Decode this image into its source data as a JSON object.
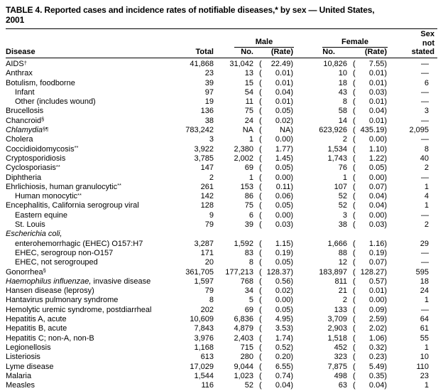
{
  "title_line1": "TABLE 4. Reported cases and incidence rates of notifiable diseases,* by sex — United States,",
  "title_line2": "2001",
  "header": {
    "disease": "Disease",
    "total": "Total",
    "male": "Male",
    "female": "Female",
    "no": "No.",
    "rate": "(Rate)",
    "sex": "Sex",
    "not": "not",
    "stated": "stated"
  },
  "rows": [
    {
      "name": "AIDS",
      "sup": "†",
      "total": "41,868",
      "mno": "31,042",
      "mrate": "22.49",
      "fno": "10,826",
      "frate": "7.55",
      "sns": "—"
    },
    {
      "name": "Anthrax",
      "total": "23",
      "mno": "13",
      "mrate": "0.01",
      "fno": "10",
      "frate": "0.01",
      "sns": "—"
    },
    {
      "name": "Botulism, foodborne",
      "total": "39",
      "mno": "15",
      "mrate": "0.01",
      "fno": "18",
      "frate": "0.01",
      "sns": "6"
    },
    {
      "name": "Infant",
      "indent": 1,
      "total": "97",
      "mno": "54",
      "mrate": "0.04",
      "fno": "43",
      "frate": "0.03",
      "sns": "—"
    },
    {
      "name": "Other (includes wound)",
      "indent": 1,
      "total": "19",
      "mno": "11",
      "mrate": "0.01",
      "fno": "8",
      "frate": "0.01",
      "sns": "—"
    },
    {
      "name": "Brucellosis",
      "total": "136",
      "mno": "75",
      "mrate": "0.05",
      "fno": "58",
      "frate": "0.04",
      "sns": "3"
    },
    {
      "name": "Chancroid",
      "sup": "§",
      "total": "38",
      "mno": "24",
      "mrate": "0.02",
      "fno": "14",
      "frate": "0.01",
      "sns": "—"
    },
    {
      "name": "Chlamydia",
      "italic": true,
      "sup": "§¶",
      "total": "783,242",
      "mno": "NA",
      "mrate": "NA",
      "fno": "623,926",
      "frate": "435.19",
      "sns": "2,095"
    },
    {
      "name": "Cholera",
      "total": "3",
      "mno": "1",
      "mrate": "0.00",
      "fno": "2",
      "frate": "0.00",
      "sns": "—"
    },
    {
      "name": "Coccidioidomycosis",
      "sup": "**",
      "total": "3,922",
      "mno": "2,380",
      "mrate": "1.77",
      "fno": "1,534",
      "frate": "1.10",
      "sns": "8"
    },
    {
      "name": "Cryptosporidiosis",
      "total": "3,785",
      "mno": "2,002",
      "mrate": "1.45",
      "fno": "1,743",
      "frate": "1.22",
      "sns": "40"
    },
    {
      "name": "Cyclosporiasis",
      "sup": "**",
      "total": "147",
      "mno": "69",
      "mrate": "0.05",
      "fno": "76",
      "frate": "0.05",
      "sns": "2"
    },
    {
      "name": "Diphtheria",
      "total": "2",
      "mno": "1",
      "mrate": "0.00",
      "fno": "1",
      "frate": "0.00",
      "sns": "—"
    },
    {
      "name": "Ehrlichiosis, human granulocytic",
      "sup": "**",
      "total": "261",
      "mno": "153",
      "mrate": "0.11",
      "fno": "107",
      "frate": "0.07",
      "sns": "1"
    },
    {
      "name": "Human monocytic",
      "sup": "**",
      "indent": 1,
      "total": "142",
      "mno": "86",
      "mrate": "0.06",
      "fno": "52",
      "frate": "0.04",
      "sns": "4"
    },
    {
      "name": "Encephalitis, California serogroup viral",
      "total": "128",
      "mno": "75",
      "mrate": "0.05",
      "fno": "52",
      "frate": "0.04",
      "sns": "1"
    },
    {
      "name": "Eastern equine",
      "indent": 1,
      "total": "9",
      "mno": "6",
      "mrate": "0.00",
      "fno": "3",
      "frate": "0.00",
      "sns": "—"
    },
    {
      "name": "St. Louis",
      "indent": 1,
      "total": "79",
      "mno": "39",
      "mrate": "0.03",
      "fno": "38",
      "frate": "0.03",
      "sns": "2"
    },
    {
      "name": "Escherichia coli,",
      "italic": true
    },
    {
      "name": "enterohemorrhagic (EHEC) O157:H7",
      "indent": 1,
      "total": "3,287",
      "mno": "1,592",
      "mrate": "1.15",
      "fno": "1,666",
      "frate": "1.16",
      "sns": "29"
    },
    {
      "name": "EHEC, serogroup non-O157",
      "indent": 1,
      "total": "171",
      "mno": "83",
      "mrate": "0.19",
      "fno": "88",
      "frate": "0.19",
      "sns": "—"
    },
    {
      "name": "EHEC, not serogrouped",
      "indent": 1,
      "total": "20",
      "mno": "8",
      "mrate": "0.05",
      "fno": "12",
      "frate": "0.07",
      "sns": "—"
    },
    {
      "name": "Gonorrhea",
      "sup": "§",
      "total": "361,705",
      "mno": "177,213",
      "mrate": "128.37",
      "fno": "183,897",
      "frate": "128.27",
      "sns": "595"
    },
    {
      "name": "Haemophilus influenzae,",
      "italic": true,
      "rest": " invasive disease",
      "total": "1,597",
      "mno": "768",
      "mrate": "0.56",
      "fno": "811",
      "frate": "0.57",
      "sns": "18"
    },
    {
      "name": "Hansen disease (leprosy)",
      "total": "79",
      "mno": "34",
      "mrate": "0.02",
      "fno": "21",
      "frate": "0.01",
      "sns": "24"
    },
    {
      "name": "Hantavirus pulmonary syndrome",
      "total": "8",
      "mno": "5",
      "mrate": "0.00",
      "fno": "2",
      "frate": "0.00",
      "sns": "1"
    },
    {
      "name": "Hemolytic uremic syndrome, postdiarrheal",
      "total": "202",
      "mno": "69",
      "mrate": "0.05",
      "fno": "133",
      "frate": "0.09",
      "sns": "—"
    },
    {
      "name": "Hepatitis A, acute",
      "total": "10,609",
      "mno": "6,836",
      "mrate": "4.95",
      "fno": "3,709",
      "frate": "2.59",
      "sns": "64"
    },
    {
      "name": "Hepatitis B, acute",
      "total": "7,843",
      "mno": "4,879",
      "mrate": "3.53",
      "fno": "2,903",
      "frate": "2.02",
      "sns": "61"
    },
    {
      "name": "Hepatitis C; non-A, non-B",
      "total": "3,976",
      "mno": "2,403",
      "mrate": "1.74",
      "fno": "1,518",
      "frate": "1.06",
      "sns": "55"
    },
    {
      "name": "Legionellosis",
      "total": "1,168",
      "mno": "715",
      "mrate": "0.52",
      "fno": "452",
      "frate": "0.32",
      "sns": "1"
    },
    {
      "name": "Listeriosis",
      "total": "613",
      "mno": "280",
      "mrate": "0.20",
      "fno": "323",
      "frate": "0.23",
      "sns": "10"
    },
    {
      "name": "Lyme disease",
      "total": "17,029",
      "mno": "9,044",
      "mrate": "6.55",
      "fno": "7,875",
      "frate": "5.49",
      "sns": "110"
    },
    {
      "name": "Malaria",
      "total": "1,544",
      "mno": "1,023",
      "mrate": "0.74",
      "fno": "498",
      "frate": "0.35",
      "sns": "23"
    },
    {
      "name": "Measles",
      "total": "116",
      "mno": "52",
      "mrate": "0.04",
      "fno": "63",
      "frate": "0.04",
      "sns": "1"
    }
  ]
}
